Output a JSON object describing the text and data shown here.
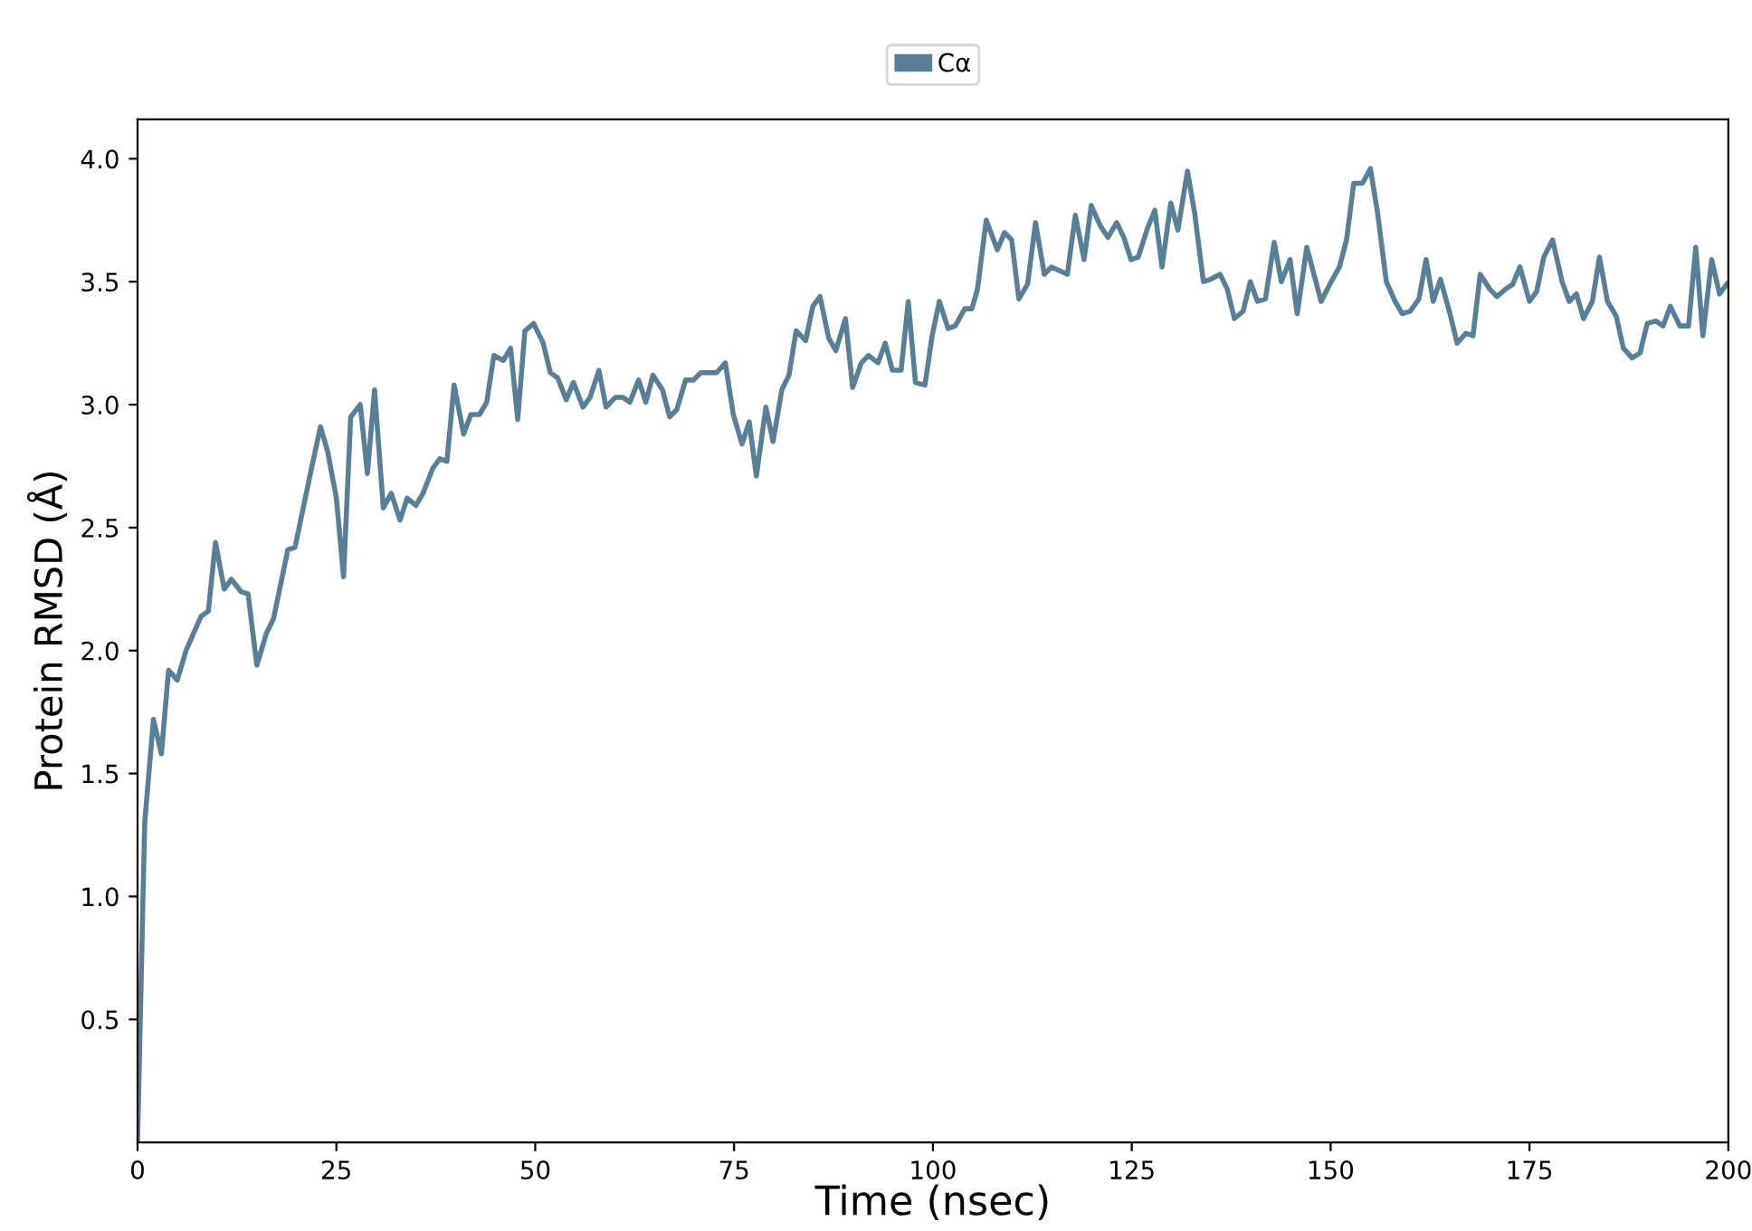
{
  "chart_data": {
    "type": "line",
    "xlabel": "Time (nsec)",
    "ylabel": "Protein RMSD (Å)",
    "xlim": [
      0,
      200
    ],
    "xticks": [
      0,
      25,
      50,
      75,
      100,
      125,
      150,
      175,
      200
    ],
    "ylim": [
      0,
      4.16
    ],
    "yticks": [
      0.5,
      {
        "value": 1,
        "label": "1.0"
      },
      1.5,
      {
        "value": 2,
        "label": "2.0"
      },
      2.5,
      {
        "value": 3,
        "label": "3.0"
      },
      3.5,
      {
        "value": 4,
        "label": "4.0"
      }
    ],
    "grid": false,
    "legend": "top",
    "marker": "none",
    "line_style": "solid",
    "series": [
      {
        "name": "Cα",
        "color": "#587f98",
        "x": [
          0,
          0.9,
          2.0,
          3.0,
          3.9,
          5.0,
          6.1,
          8.0,
          8.9,
          9.8,
          10.9,
          11.8,
          13.0,
          13.9,
          15.0,
          16.2,
          17.1,
          18.9,
          19.8,
          21.8,
          23.0,
          23.9,
          25.0,
          25.9,
          26.8,
          28.0,
          28.9,
          29.8,
          30.9,
          31.9,
          33.0,
          33.9,
          35.0,
          35.9,
          37.1,
          38.0,
          38.9,
          39.8,
          41.0,
          41.9,
          43.0,
          43.9,
          44.8,
          46.0,
          46.9,
          47.8,
          48.7,
          49.8,
          51.0,
          51.9,
          52.8,
          53.9,
          54.8,
          56.0,
          56.9,
          58.0,
          58.9,
          60.1,
          61.0,
          61.9,
          63.0,
          63.9,
          64.8,
          66.0,
          66.9,
          67.8,
          68.9,
          69.9,
          70.8,
          72.8,
          73.9,
          74.9,
          76.0,
          76.9,
          77.8,
          79.0,
          79.9,
          81.0,
          81.9,
          82.8,
          84.0,
          84.9,
          85.8,
          86.9,
          87.8,
          89.0,
          89.9,
          91.0,
          91.9,
          93.1,
          94.0,
          94.9,
          96.0,
          96.9,
          97.8,
          99.0,
          99.9,
          100.8,
          101.9,
          102.8,
          104.0,
          104.9,
          105.6,
          106.7,
          108.1,
          109.0,
          109.9,
          110.8,
          111.9,
          112.9,
          114.0,
          114.9,
          116.9,
          117.9,
          119.0,
          119.9,
          121.0,
          122.0,
          123.1,
          124.0,
          124.9,
          125.8,
          127.0,
          127.9,
          128.8,
          129.9,
          130.8,
          132.0,
          132.9,
          134.0,
          134.9,
          136.1,
          137.0,
          137.9,
          139.0,
          139.9,
          140.8,
          141.8,
          142.9,
          143.8,
          144.9,
          145.8,
          147.0,
          147.9,
          148.8,
          149.9,
          151.1,
          152.0,
          152.9,
          154.0,
          155.0,
          155.9,
          157.0,
          158.1,
          159.0,
          160.0,
          161.1,
          162.0,
          162.9,
          163.8,
          165.0,
          165.9,
          167.0,
          167.9,
          168.8,
          170.0,
          170.9,
          172.0,
          172.9,
          173.8,
          175.0,
          175.9,
          176.8,
          177.9,
          179.1,
          180.0,
          180.9,
          181.8,
          182.9,
          183.8,
          184.8,
          185.9,
          186.8,
          187.9,
          188.9,
          189.8,
          190.9,
          191.8,
          192.7,
          193.9,
          195.0,
          195.9,
          196.8,
          197.9,
          198.9,
          199.8
        ],
        "values": [
          0,
          1.3,
          1.72,
          1.58,
          1.92,
          1.88,
          2.0,
          2.14,
          2.16,
          2.44,
          2.25,
          2.29,
          2.24,
          2.23,
          1.94,
          2.07,
          2.13,
          2.41,
          2.42,
          2.73,
          2.91,
          2.81,
          2.62,
          2.3,
          2.95,
          3.0,
          2.72,
          3.06,
          2.58,
          2.64,
          2.53,
          2.62,
          2.59,
          2.64,
          2.74,
          2.78,
          2.77,
          3.08,
          2.88,
          2.96,
          2.96,
          3.01,
          3.2,
          3.18,
          3.23,
          2.94,
          3.3,
          3.33,
          3.25,
          3.13,
          3.11,
          3.02,
          3.09,
          2.99,
          3.03,
          3.14,
          2.99,
          3.03,
          3.03,
          3.01,
          3.1,
          3.01,
          3.12,
          3.06,
          2.95,
          2.98,
          3.1,
          3.1,
          3.13,
          3.13,
          3.17,
          2.96,
          2.84,
          2.93,
          2.71,
          2.99,
          2.85,
          3.06,
          3.12,
          3.3,
          3.26,
          3.4,
          3.44,
          3.27,
          3.22,
          3.35,
          3.07,
          3.17,
          3.2,
          3.17,
          3.25,
          3.14,
          3.14,
          3.42,
          3.09,
          3.08,
          3.28,
          3.42,
          3.31,
          3.32,
          3.39,
          3.39,
          3.47,
          3.75,
          3.63,
          3.7,
          3.67,
          3.43,
          3.49,
          3.74,
          3.53,
          3.56,
          3.53,
          3.77,
          3.59,
          3.81,
          3.73,
          3.68,
          3.74,
          3.68,
          3.59,
          3.6,
          3.72,
          3.79,
          3.56,
          3.82,
          3.71,
          3.95,
          3.78,
          3.5,
          3.51,
          3.53,
          3.47,
          3.35,
          3.38,
          3.5,
          3.42,
          3.43,
          3.66,
          3.5,
          3.59,
          3.37,
          3.64,
          3.53,
          3.42,
          3.49,
          3.56,
          3.67,
          3.9,
          3.9,
          3.96,
          3.78,
          3.5,
          3.42,
          3.37,
          3.38,
          3.43,
          3.59,
          3.42,
          3.51,
          3.37,
          3.25,
          3.29,
          3.28,
          3.53,
          3.47,
          3.44,
          3.47,
          3.49,
          3.56,
          3.42,
          3.46,
          3.6,
          3.67,
          3.5,
          3.42,
          3.45,
          3.35,
          3.42,
          3.6,
          3.42,
          3.36,
          3.23,
          3.19,
          3.21,
          3.33,
          3.34,
          3.32,
          3.4,
          3.32,
          3.32,
          3.64,
          3.28,
          3.59,
          3.45,
          3.49
        ]
      }
    ]
  }
}
